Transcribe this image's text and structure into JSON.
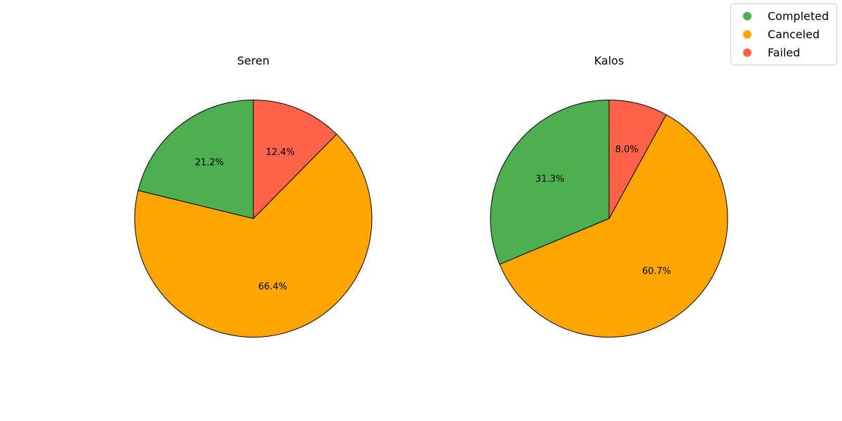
{
  "chart_data": [
    {
      "type": "pie",
      "title": "Seren",
      "categories": [
        "Completed",
        "Canceled",
        "Failed"
      ],
      "values": [
        21.2,
        66.4,
        12.4
      ],
      "labels": [
        "21.2%",
        "66.4%",
        "12.4%"
      ],
      "start_angle": 90,
      "direction": "counterclockwise"
    },
    {
      "type": "pie",
      "title": "Kalos",
      "categories": [
        "Completed",
        "Canceled",
        "Failed"
      ],
      "values": [
        31.3,
        60.7,
        8.0
      ],
      "labels": [
        "31.3%",
        "60.7%",
        "8.0%"
      ],
      "start_angle": 90,
      "direction": "counterclockwise"
    }
  ],
  "legend": {
    "placement": "top-right",
    "items": [
      {
        "label": "Completed",
        "color": "#4CAF50"
      },
      {
        "label": "Canceled",
        "color": "#FFA500"
      },
      {
        "label": "Failed",
        "color": "#FF6347"
      }
    ]
  },
  "colors": {
    "Completed": "#4CAF50",
    "Canceled": "#FFA500",
    "Failed": "#FF6347",
    "edge": "#000000"
  }
}
